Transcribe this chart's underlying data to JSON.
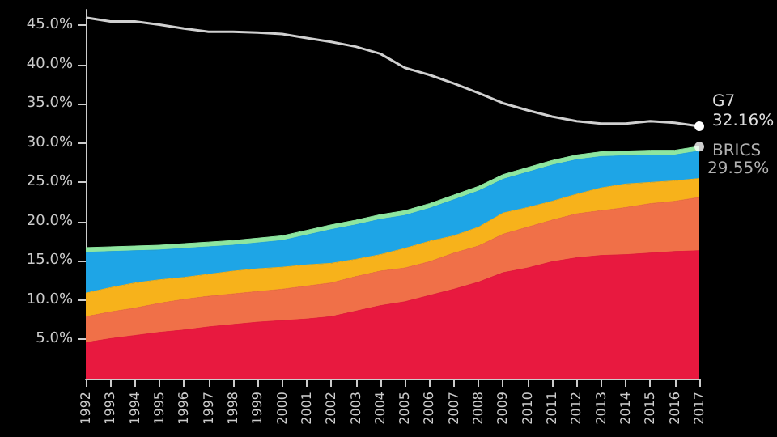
{
  "chart_data": {
    "type": "area",
    "stacked": true,
    "categories": [
      "1992",
      "1993",
      "1994",
      "1995",
      "1996",
      "1997",
      "1998",
      "1999",
      "2000",
      "2001",
      "2002",
      "2003",
      "2004",
      "2005",
      "2006",
      "2007",
      "2008",
      "2009",
      "2010",
      "2011",
      "2012",
      "2013",
      "2014",
      "2015",
      "2016",
      "2017"
    ],
    "ylim": [
      0,
      47
    ],
    "yticks": [
      {
        "value": 5,
        "label": "5.0%"
      },
      {
        "value": 10,
        "label": "10.0%"
      },
      {
        "value": 15,
        "label": "15.0%"
      },
      {
        "value": 20,
        "label": "20.0%"
      },
      {
        "value": 25,
        "label": "25.0%"
      },
      {
        "value": 30,
        "label": "30.0%"
      },
      {
        "value": 35,
        "label": "35.0%"
      },
      {
        "value": 40,
        "label": "40.0%"
      },
      {
        "value": 45,
        "label": "45.0%"
      }
    ],
    "grid": false,
    "legend": false,
    "series": [
      {
        "color": "#e8193f",
        "values": [
          4.6,
          5.1,
          5.5,
          5.9,
          6.2,
          6.6,
          6.9,
          7.2,
          7.4,
          7.6,
          7.9,
          8.6,
          9.3,
          9.8,
          10.6,
          11.4,
          12.3,
          13.5,
          14.1,
          14.9,
          15.4,
          15.7,
          15.8,
          16.0,
          16.2,
          16.3
        ]
      },
      {
        "color": "#f07048",
        "values": [
          3.3,
          3.4,
          3.5,
          3.7,
          3.9,
          3.9,
          3.9,
          3.9,
          4.0,
          4.2,
          4.3,
          4.4,
          4.4,
          4.3,
          4.3,
          4.6,
          4.6,
          4.9,
          5.2,
          5.3,
          5.6,
          5.7,
          6.0,
          6.3,
          6.4,
          6.8
        ]
      },
      {
        "color": "#f7b21b",
        "values": [
          3.0,
          3.1,
          3.2,
          3.0,
          2.8,
          2.8,
          2.9,
          2.9,
          2.8,
          2.7,
          2.5,
          2.2,
          2.1,
          2.5,
          2.6,
          2.2,
          2.4,
          2.7,
          2.5,
          2.4,
          2.5,
          2.9,
          3.0,
          2.7,
          2.6,
          2.4
        ]
      },
      {
        "color": "#1ea5e6",
        "values": [
          5.2,
          4.6,
          4.1,
          3.8,
          3.7,
          3.5,
          3.3,
          3.3,
          3.4,
          3.8,
          4.3,
          4.4,
          4.5,
          4.2,
          4.2,
          4.6,
          4.6,
          4.3,
          4.5,
          4.6,
          4.4,
          4.0,
          3.6,
          3.5,
          3.3,
          3.5
        ]
      },
      {
        "color": "#8ee6a0",
        "values": [
          0.6,
          0.6,
          0.6,
          0.6,
          0.6,
          0.6,
          0.6,
          0.6,
          0.6,
          0.6,
          0.6,
          0.6,
          0.6,
          0.6,
          0.6,
          0.6,
          0.6,
          0.6,
          0.6,
          0.6,
          0.6,
          0.6,
          0.6,
          0.6,
          0.6,
          0.6
        ]
      },
      {
        "type": "line",
        "name": "G7",
        "color": "#d0d0d0",
        "values": [
          46.0,
          45.5,
          45.5,
          45.1,
          44.6,
          44.2,
          44.2,
          44.1,
          43.9,
          43.4,
          42.9,
          42.3,
          41.4,
          39.6,
          38.7,
          37.6,
          36.4,
          35.1,
          34.2,
          33.4,
          32.8,
          32.5,
          32.5,
          32.8,
          32.6,
          32.16
        ],
        "value_labels": [
          null,
          null,
          null,
          null,
          null,
          null,
          null,
          null,
          null,
          null,
          null,
          null,
          null,
          null,
          null,
          null,
          null,
          null,
          null,
          null,
          null,
          null,
          null,
          null,
          null,
          "32.16%"
        ]
      }
    ],
    "annotations": [
      {
        "text": "BRICS",
        "x": "2017",
        "y": 29.55
      },
      {
        "text": "29.55%",
        "x": "2017",
        "y": 29.55
      }
    ]
  }
}
